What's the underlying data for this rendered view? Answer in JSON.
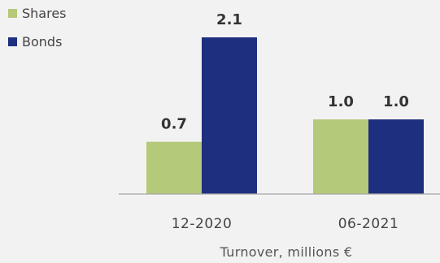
{
  "chart_data": {
    "type": "bar",
    "categories": [
      "12-2020",
      "06-2021"
    ],
    "series": [
      {
        "name": "Shares",
        "values": [
          0.7,
          1.0
        ],
        "color": "#b5c97a"
      },
      {
        "name": "Bonds",
        "values": [
          2.1,
          1.0
        ],
        "color": "#1f2f7f"
      }
    ],
    "value_labels": [
      [
        "0.7",
        "1.0"
      ],
      [
        "2.1",
        "1.0"
      ]
    ],
    "xlabel": "Turnover, millions €",
    "ylabel": "",
    "ylim": [
      0,
      2.1
    ],
    "legend_position": "top-left",
    "grid": false,
    "axis_color": "#a6a6a6",
    "background": "#f2f2f2"
  }
}
